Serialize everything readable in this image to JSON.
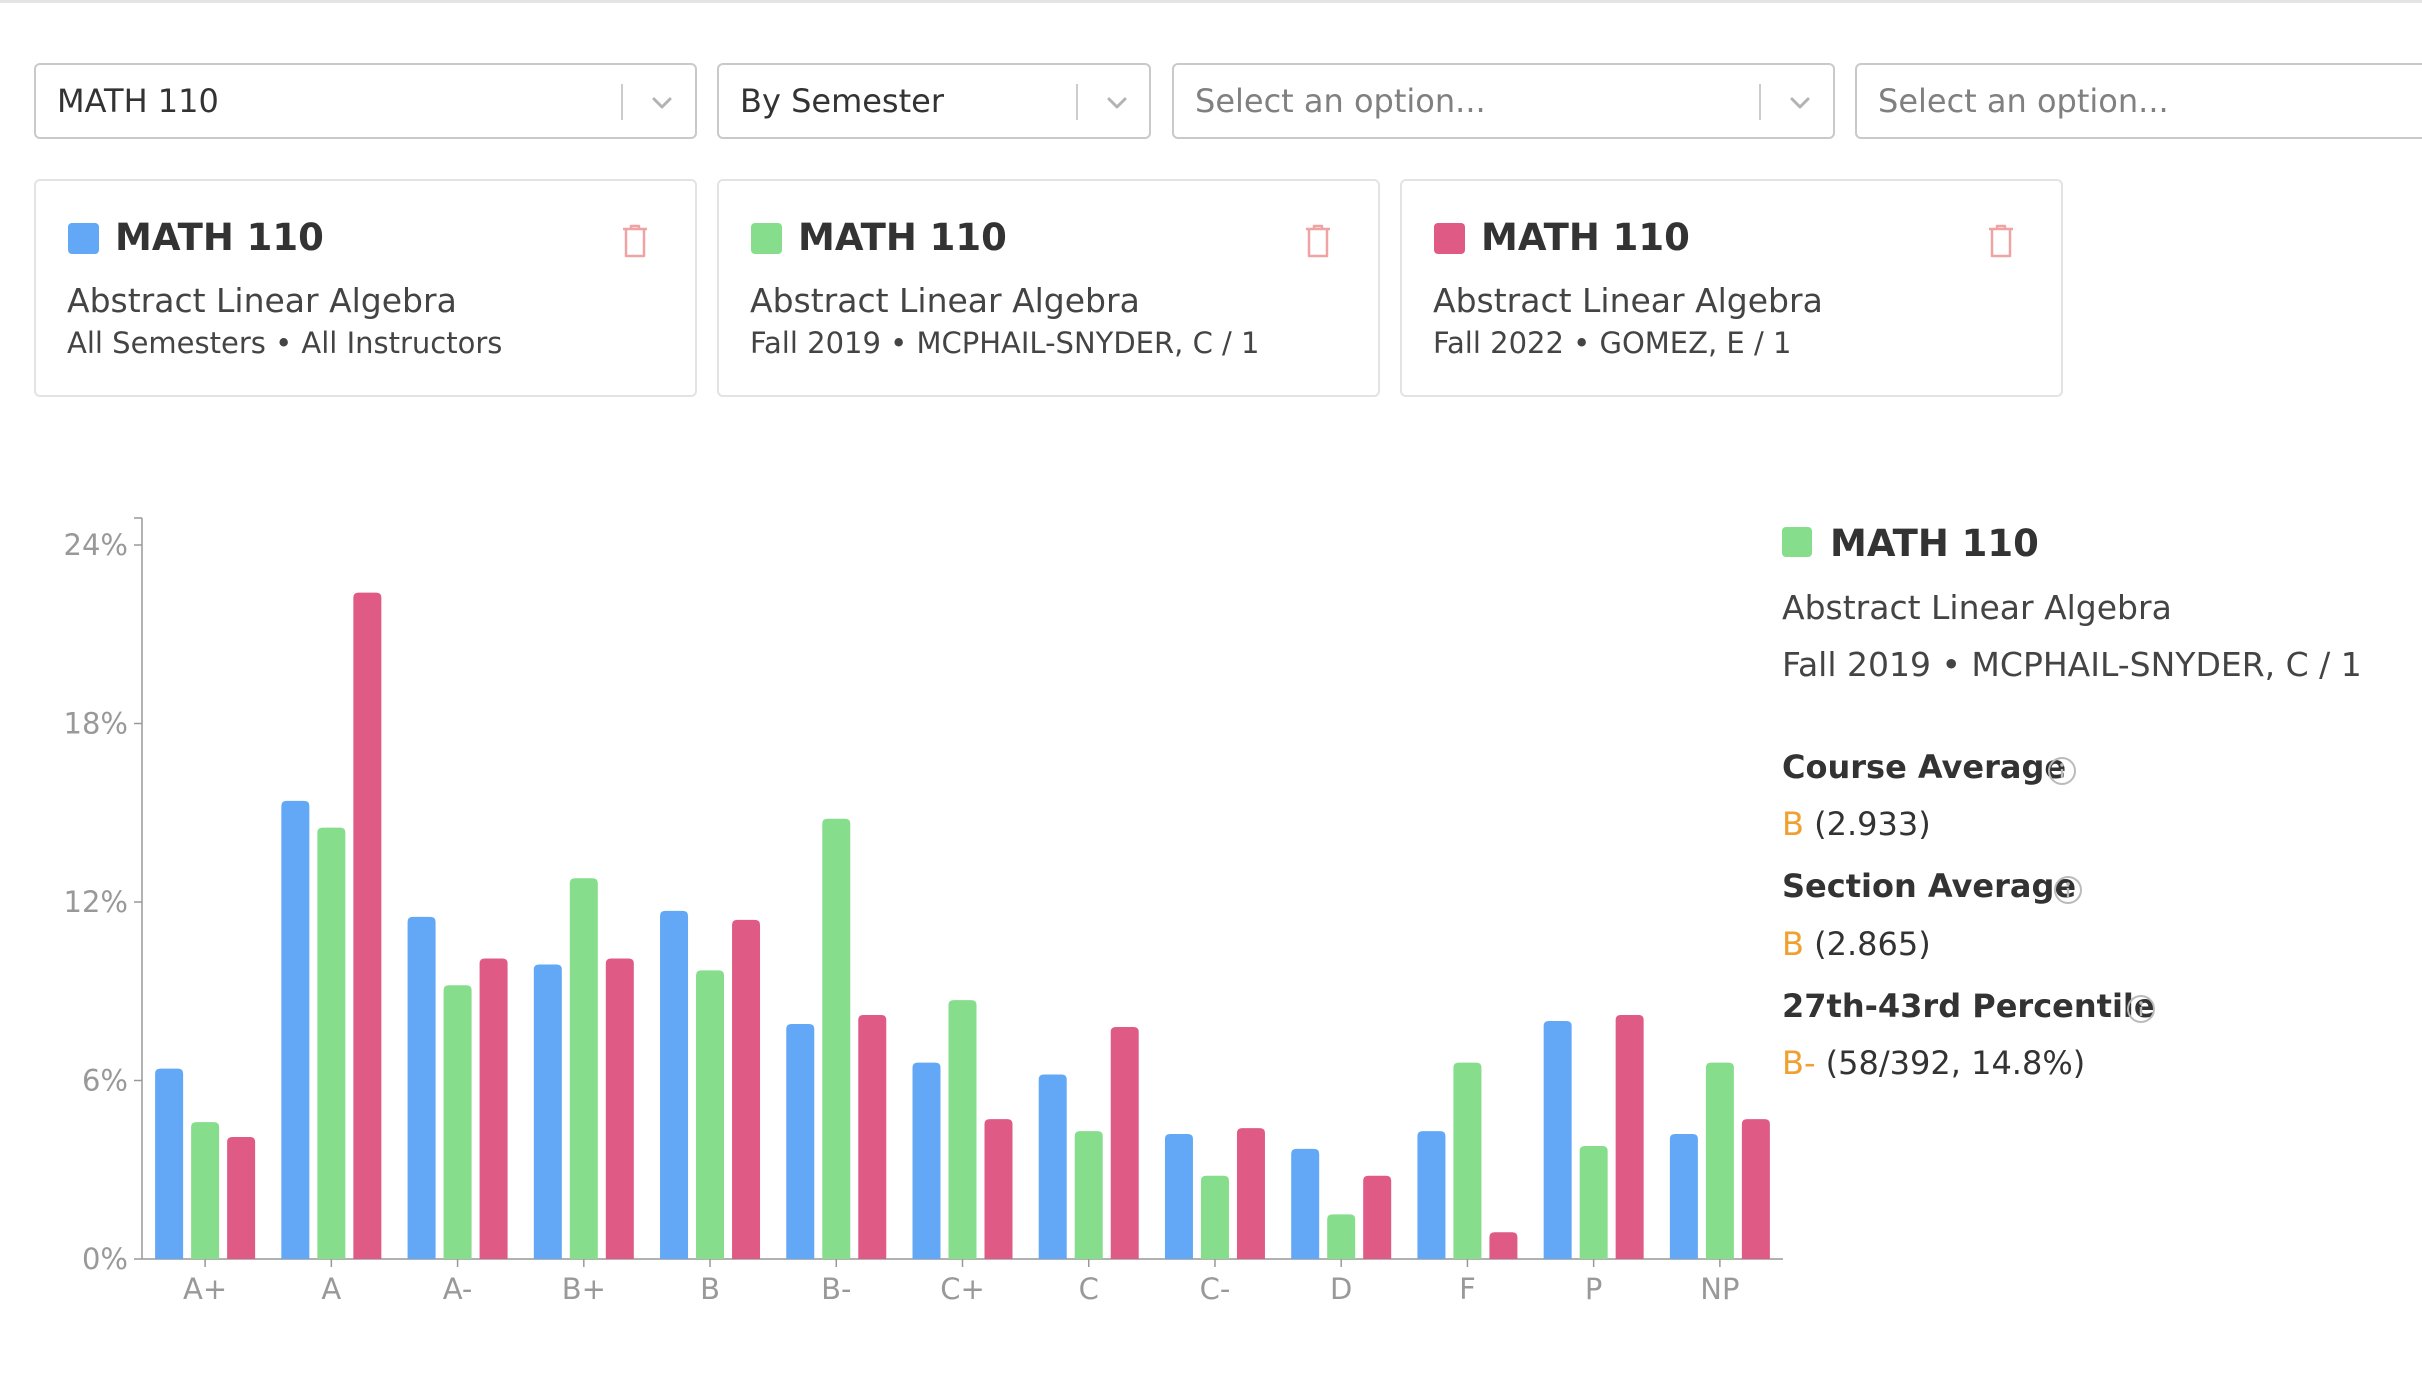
{
  "filters": {
    "course": {
      "value": "MATH 110"
    },
    "grouping": {
      "value": "By Semester"
    },
    "option_a": {
      "placeholder": "Select an option..."
    },
    "option_b": {
      "placeholder": "Select an option..."
    }
  },
  "cards": [
    {
      "color": "#62a8f7",
      "code": "MATH 110",
      "title": "Abstract Linear Algebra",
      "meta": "All Semesters • All Instructors"
    },
    {
      "color": "#86dd8c",
      "code": "MATH 110",
      "title": "Abstract Linear Algebra",
      "meta": "Fall 2019 • MCPHAIL-SNYDER, C / 1"
    },
    {
      "color": "#df5b86",
      "code": "MATH 110",
      "title": "Abstract Linear Algebra",
      "meta": "Fall 2022 • GOMEZ, E / 1"
    }
  ],
  "info_panel": {
    "color": "#86dd8c",
    "code": "MATH 110",
    "title": "Abstract Linear Algebra",
    "meta": "Fall 2019 • MCPHAIL-SNYDER, C / 1",
    "course_average": {
      "label": "Course Average",
      "grade": "B",
      "detail": "(2.933)"
    },
    "section_average": {
      "label": "Section Average",
      "grade": "B",
      "detail": "(2.865)"
    },
    "percentile": {
      "label": "27th-43rd Percentile",
      "grade": "B-",
      "detail": "(58/392, 14.8%)"
    }
  },
  "chart_data": {
    "type": "bar",
    "categories": [
      "A+",
      "A",
      "A-",
      "B+",
      "B",
      "B-",
      "C+",
      "C",
      "C-",
      "D",
      "F",
      "P",
      "NP"
    ],
    "y_ticks": [
      "0%",
      "6%",
      "12%",
      "18%",
      "24%"
    ],
    "ylim": [
      0,
      24
    ],
    "series": [
      {
        "color": "#62a8f7",
        "values": [
          6.4,
          15.4,
          11.5,
          9.9,
          11.7,
          7.9,
          6.6,
          6.2,
          4.2,
          3.7,
          4.3,
          8.0,
          4.2
        ]
      },
      {
        "color": "#86dd8c",
        "values": [
          4.6,
          14.5,
          9.2,
          12.8,
          9.7,
          14.8,
          8.7,
          4.3,
          2.8,
          1.5,
          6.6,
          3.8,
          6.6
        ]
      },
      {
        "color": "#df5b86",
        "values": [
          4.1,
          22.4,
          10.1,
          10.1,
          11.4,
          8.2,
          4.7,
          7.8,
          4.4,
          2.8,
          0.9,
          8.2,
          4.7
        ]
      }
    ],
    "grid": false
  }
}
